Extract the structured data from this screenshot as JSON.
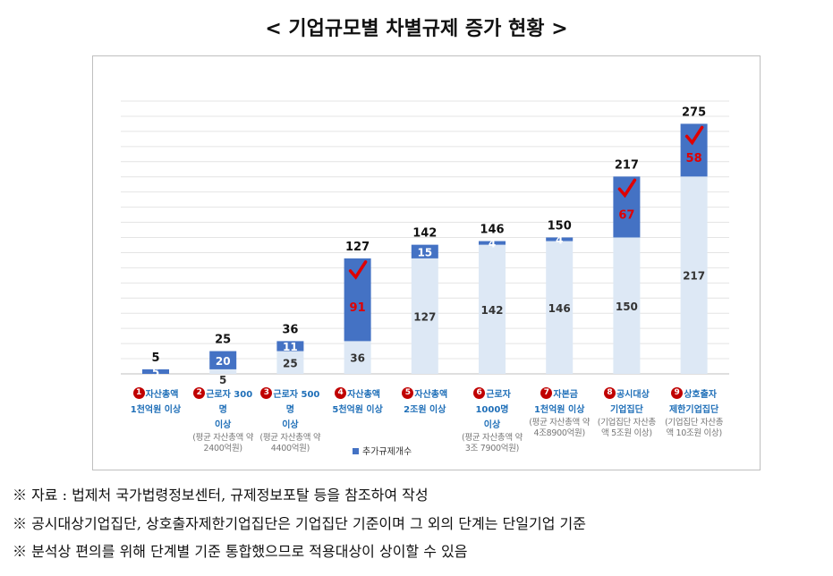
{
  "title": "< 기업규모별 차별규제 증가 현황 >",
  "chart_data": {
    "type": "bar",
    "stacked": true,
    "categories": [
      {
        "no": "1",
        "line1": "자산총액",
        "line2": "1천억원 이상",
        "sub": ""
      },
      {
        "no": "2",
        "line1": "근로자 300명",
        "line2": "이상",
        "sub": "(평균 자산총액 약 2400억원)"
      },
      {
        "no": "3",
        "line1": "근로자 500명",
        "line2": "이상",
        "sub": "(평균 자산총액 약 4400억원)"
      },
      {
        "no": "4",
        "line1": "자산총액",
        "line2": "5천억원 이상",
        "sub": ""
      },
      {
        "no": "5",
        "line1": "자산총액",
        "line2": "2조원 이상",
        "sub": ""
      },
      {
        "no": "6",
        "line1": "근로자 1000명",
        "line2": "이상",
        "sub": "(평균 자산총액 약 3조 7900억원)"
      },
      {
        "no": "7",
        "line1": "자본금",
        "line2": "1천억원 이상",
        "sub": "(평균 자산총액 약 4조8900억원)"
      },
      {
        "no": "8",
        "line1": "공시대상",
        "line2": "기업집단",
        "sub": "(기업집단 자산총액 5조원 이상)"
      },
      {
        "no": "9",
        "line1": "상호출자",
        "line2": "제한기업집단",
        "sub": "(기업집단 자산총액 10조원 이상)"
      }
    ],
    "series": [
      {
        "role": "base",
        "values": [
          0,
          5,
          25,
          36,
          127,
          142,
          146,
          150,
          217
        ],
        "color": "#dde8f5"
      },
      {
        "name": "추가규제개수",
        "values": [
          5,
          20,
          11,
          91,
          15,
          4,
          4,
          67,
          58
        ],
        "color": "#4472c4"
      }
    ],
    "totals": [
      5,
      25,
      36,
      127,
      142,
      146,
      150,
      217,
      275
    ],
    "highlighted": [
      3,
      7,
      8
    ],
    "highlight_color": "#e00000",
    "ylim": [
      0,
      300
    ],
    "grid": true,
    "legend": "bottom"
  },
  "notes": [
    "※ 자료 : 법제처 국가법령정보센터, 규제정보포탈 등을 참조하여 작성",
    "※ 공시대상기업집단, 상호출자제한기업집단은 기업집단 기준이며 그 외의 단계는 단일기업 기준",
    "※ 분석상 편의를 위해 단계별 기준 통합했으므로 적용대상이 상이할 수 있음"
  ]
}
